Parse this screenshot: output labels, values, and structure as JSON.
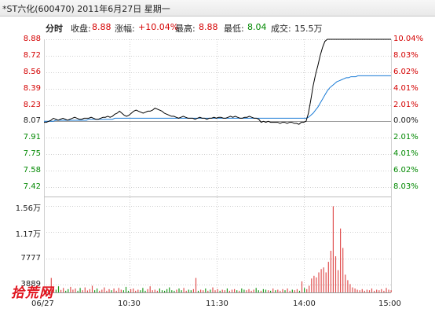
{
  "title": "*ST六化(600470) 2011年6月27日 星期一",
  "info": {
    "mode": "分时",
    "close_label": "收盘:",
    "close_value": "8.88",
    "change_label": "涨幅:",
    "change_value": "+10.04%",
    "high_label": "最高:",
    "high_value": "8.88",
    "low_label": "最低:",
    "low_value": "8.04",
    "vol_label": "成交:",
    "vol_value": "15.5万"
  },
  "price_axis": [
    "8.88",
    "8.72",
    "8.56",
    "8.39",
    "8.23",
    "8.07",
    "7.91",
    "7.75",
    "7.58",
    "7.42"
  ],
  "pct_axis": [
    "10.04%",
    "8.03%",
    "6.02%",
    "4.01%",
    "2.01%",
    "0.00%",
    "2.01%",
    "4.01%",
    "6.02%",
    "8.03%"
  ],
  "vol_axis": [
    "1.56万",
    "1.17万",
    "7777",
    "3889"
  ],
  "time_axis": [
    "06/27",
    "10:30",
    "11:30",
    "14:00",
    "15:00"
  ],
  "watermark": "拾荒网",
  "colors": {
    "up": "#d40000",
    "down": "#008800",
    "price_line": "#000000",
    "avg_line": "#1a7bd6",
    "grid": "#bdbdbd"
  },
  "chart_data": {
    "type": "line",
    "ylim": [
      7.42,
      8.88
    ],
    "prev_close": 8.07,
    "series": [
      {
        "name": "",
        "color": "#000000",
        "values": [
          8.06,
          8.06,
          8.07,
          8.08,
          8.1,
          8.09,
          8.08,
          8.09,
          8.1,
          8.09,
          8.08,
          8.09,
          8.1,
          8.11,
          8.1,
          8.09,
          8.09,
          8.1,
          8.1,
          8.1,
          8.11,
          8.1,
          8.09,
          8.09,
          8.1,
          8.11,
          8.11,
          8.12,
          8.11,
          8.12,
          8.14,
          8.15,
          8.17,
          8.15,
          8.13,
          8.12,
          8.13,
          8.15,
          8.17,
          8.18,
          8.17,
          8.16,
          8.15,
          8.16,
          8.17,
          8.17,
          8.18,
          8.2,
          8.19,
          8.18,
          8.17,
          8.15,
          8.14,
          8.13,
          8.12,
          8.12,
          8.11,
          8.1,
          8.11,
          8.12,
          8.11,
          8.1,
          8.1,
          8.1,
          8.09,
          8.1,
          8.11,
          8.1,
          8.1,
          8.09,
          8.1,
          8.1,
          8.11,
          8.1,
          8.11,
          8.11,
          8.1,
          8.1,
          8.11,
          8.12,
          8.11,
          8.12,
          8.11,
          8.1,
          8.1,
          8.11,
          8.11,
          8.12,
          8.11,
          8.1,
          8.1,
          8.09,
          8.06,
          8.07,
          8.06,
          8.07,
          8.06,
          8.06,
          8.06,
          8.06,
          8.05,
          8.06,
          8.06,
          8.05,
          8.06,
          8.06,
          8.05,
          8.05,
          8.04,
          8.06,
          8.06,
          8.07,
          8.15,
          8.28,
          8.42,
          8.53,
          8.62,
          8.72,
          8.8,
          8.86,
          8.88,
          8.88,
          8.88,
          8.88,
          8.88,
          8.88,
          8.88,
          8.88,
          8.88,
          8.88,
          8.88,
          8.88,
          8.88,
          8.88,
          8.88,
          8.88,
          8.88,
          8.88,
          8.88,
          8.88,
          8.88,
          8.88,
          8.88,
          8.88,
          8.88,
          8.88,
          8.88,
          8.88
        ]
      },
      {
        "name": "",
        "color": "#1a7bd6",
        "values": [
          8.07,
          8.07,
          8.07,
          8.07,
          8.07,
          8.08,
          8.08,
          8.08,
          8.08,
          8.08,
          8.08,
          8.08,
          8.08,
          8.08,
          8.08,
          8.08,
          8.08,
          8.08,
          8.08,
          8.09,
          8.09,
          8.09,
          8.09,
          8.09,
          8.09,
          8.09,
          8.09,
          8.09,
          8.09,
          8.09,
          8.1,
          8.1,
          8.1,
          8.1,
          8.1,
          8.1,
          8.1,
          8.1,
          8.1,
          8.1,
          8.1,
          8.1,
          8.1,
          8.1,
          8.1,
          8.1,
          8.1,
          8.1,
          8.1,
          8.1,
          8.1,
          8.1,
          8.1,
          8.1,
          8.1,
          8.1,
          8.1,
          8.1,
          8.1,
          8.1,
          8.1,
          8.1,
          8.1,
          8.1,
          8.1,
          8.1,
          8.1,
          8.1,
          8.1,
          8.1,
          8.1,
          8.1,
          8.1,
          8.1,
          8.1,
          8.1,
          8.1,
          8.1,
          8.1,
          8.1,
          8.1,
          8.1,
          8.1,
          8.1,
          8.1,
          8.1,
          8.1,
          8.1,
          8.1,
          8.1,
          8.1,
          8.1,
          8.1,
          8.1,
          8.1,
          8.1,
          8.1,
          8.1,
          8.1,
          8.1,
          8.1,
          8.1,
          8.1,
          8.1,
          8.1,
          8.1,
          8.1,
          8.1,
          8.1,
          8.1,
          8.1,
          8.1,
          8.11,
          8.13,
          8.15,
          8.18,
          8.21,
          8.25,
          8.29,
          8.33,
          8.37,
          8.4,
          8.42,
          8.44,
          8.46,
          8.47,
          8.48,
          8.49,
          8.5,
          8.5,
          8.51,
          8.51,
          8.51,
          8.52,
          8.52,
          8.52,
          8.52,
          8.52,
          8.52,
          8.52,
          8.52,
          8.52,
          8.52,
          8.52,
          8.52,
          8.52,
          8.52,
          8.52
        ]
      }
    ],
    "volume": {
      "ylim": [
        0,
        15554
      ],
      "values": [
        600,
        900,
        400,
        2600,
        700,
        500,
        1100,
        450,
        800,
        300,
        600,
        1000,
        500,
        700,
        300,
        800,
        400,
        900,
        350,
        600,
        1200,
        400,
        700,
        300,
        500,
        900,
        300,
        600,
        400,
        700,
        300,
        800,
        500,
        400,
        1000,
        300,
        600,
        700,
        300,
        500,
        400,
        800,
        300,
        600,
        1100,
        400,
        500,
        300,
        700,
        400,
        300,
        600,
        900,
        400,
        300,
        500,
        700,
        400,
        800,
        300,
        500,
        400,
        600,
        2600,
        300,
        500,
        400,
        700,
        300,
        500,
        900,
        400,
        600,
        300,
        500,
        400,
        700,
        300,
        500,
        600,
        400,
        300,
        700,
        500,
        400,
        600,
        300,
        500,
        800,
        400,
        300,
        600,
        500,
        400,
        300,
        700,
        400,
        500,
        300,
        600,
        400,
        700,
        300,
        500,
        400,
        600,
        300,
        2000,
        800,
        600,
        1200,
        2500,
        3000,
        2700,
        3600,
        4200,
        4500,
        3600,
        5500,
        7500,
        15500,
        6500,
        4000,
        11500,
        8000,
        3200,
        2200,
        1500,
        900,
        700,
        500,
        400,
        600,
        300,
        500,
        400,
        700,
        300,
        500,
        400,
        600,
        300,
        800,
        500,
        400
      ]
    }
  }
}
